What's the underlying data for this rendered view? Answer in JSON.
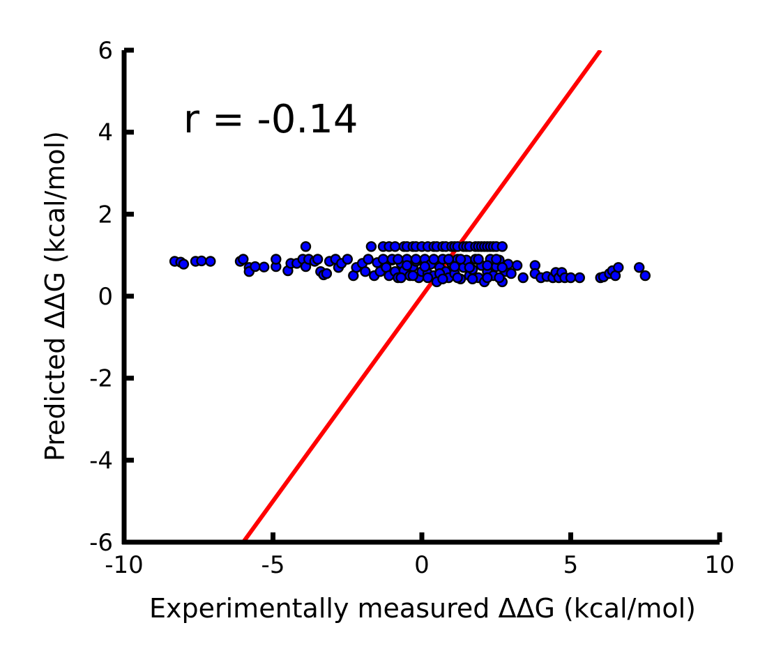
{
  "chart_data": {
    "type": "scatter",
    "title": "",
    "xlabel": "Experimentally measured ΔΔG (kcal/mol)",
    "ylabel": "Predicted ΔΔG (kcal/mol)",
    "xlim": [
      -10,
      10
    ],
    "ylim": [
      -6,
      6
    ],
    "x_ticks": [
      -10,
      -5,
      0,
      5,
      10
    ],
    "x_tick_labels": [
      "-10",
      "-5",
      "0",
      "5",
      "10"
    ],
    "y_ticks": [
      -6,
      -4,
      -2,
      0,
      2,
      4,
      6
    ],
    "y_tick_labels": [
      "-6",
      "-4",
      "-2",
      "0",
      "2",
      "4",
      "6"
    ],
    "grid": false,
    "annotation": "r = -0.14",
    "reference_line": {
      "color": "#ff0000",
      "x": [
        -6,
        6
      ],
      "y": [
        -6,
        6
      ]
    },
    "marker": {
      "fill": "#0000ff",
      "stroke": "#000000"
    },
    "points": [
      [
        -8.3,
        0.85
      ],
      [
        -8.1,
        0.83
      ],
      [
        -8.0,
        0.78
      ],
      [
        -7.6,
        0.85
      ],
      [
        -7.4,
        0.86
      ],
      [
        -7.1,
        0.85
      ],
      [
        -6.1,
        0.85
      ],
      [
        -6.0,
        0.9
      ],
      [
        -5.8,
        0.7
      ],
      [
        -5.8,
        0.6
      ],
      [
        -5.6,
        0.72
      ],
      [
        -5.3,
        0.71
      ],
      [
        -4.9,
        0.72
      ],
      [
        -4.9,
        0.9
      ],
      [
        -4.5,
        0.62
      ],
      [
        -4.4,
        0.8
      ],
      [
        -4.2,
        0.8
      ],
      [
        -4.0,
        0.9
      ],
      [
        -3.9,
        1.21
      ],
      [
        -3.9,
        0.72
      ],
      [
        -3.8,
        0.9
      ],
      [
        -3.6,
        0.85
      ],
      [
        -3.5,
        0.9
      ],
      [
        -3.4,
        0.6
      ],
      [
        -3.3,
        0.52
      ],
      [
        -3.2,
        0.55
      ],
      [
        -3.1,
        0.85
      ],
      [
        -2.9,
        0.9
      ],
      [
        -2.8,
        0.7
      ],
      [
        -2.7,
        0.8
      ],
      [
        -2.5,
        0.9
      ],
      [
        -2.3,
        0.5
      ],
      [
        -2.2,
        0.7
      ],
      [
        -2.0,
        0.8
      ],
      [
        -1.9,
        0.6
      ],
      [
        -1.8,
        0.9
      ],
      [
        -1.6,
        0.5
      ],
      [
        -1.5,
        0.82
      ],
      [
        -1.4,
        0.6
      ],
      [
        -1.3,
        0.9
      ],
      [
        -1.2,
        0.7
      ],
      [
        -1.1,
        0.5
      ],
      [
        -1.0,
        0.88
      ],
      [
        -0.9,
        0.6
      ],
      [
        -0.8,
        0.45
      ],
      [
        -0.7,
        0.8
      ],
      [
        -0.6,
        0.62
      ],
      [
        -0.5,
        0.9
      ],
      [
        -0.4,
        0.5
      ],
      [
        -0.3,
        0.72
      ],
      [
        -0.2,
        0.85
      ],
      [
        -0.1,
        0.45
      ],
      [
        0.0,
        0.6
      ],
      [
        0.1,
        0.9
      ],
      [
        0.2,
        0.55
      ],
      [
        0.3,
        0.78
      ],
      [
        0.4,
        0.5
      ],
      [
        0.5,
        0.35
      ],
      [
        0.6,
        0.7
      ],
      [
        0.7,
        0.9
      ],
      [
        0.8,
        0.6
      ],
      [
        0.9,
        0.45
      ],
      [
        1.0,
        0.8
      ],
      [
        1.1,
        0.55
      ],
      [
        1.2,
        0.9
      ],
      [
        1.3,
        0.42
      ],
      [
        1.4,
        0.7
      ],
      [
        1.5,
        0.88
      ],
      [
        1.6,
        0.5
      ],
      [
        1.7,
        0.65
      ],
      [
        1.8,
        0.9
      ],
      [
        1.9,
        0.45
      ],
      [
        2.0,
        0.75
      ],
      [
        2.1,
        0.35
      ],
      [
        2.2,
        0.6
      ],
      [
        2.3,
        0.9
      ],
      [
        2.4,
        0.5
      ],
      [
        2.5,
        0.72
      ],
      [
        2.6,
        0.88
      ],
      [
        2.7,
        0.35
      ],
      [
        2.8,
        0.6
      ],
      [
        2.9,
        0.78
      ],
      [
        3.0,
        0.55
      ],
      [
        3.2,
        0.75
      ],
      [
        3.4,
        0.45
      ],
      [
        3.8,
        0.75
      ],
      [
        3.8,
        0.55
      ],
      [
        4.0,
        0.45
      ],
      [
        4.2,
        0.48
      ],
      [
        4.4,
        0.45
      ],
      [
        4.5,
        0.58
      ],
      [
        4.6,
        0.45
      ],
      [
        4.7,
        0.58
      ],
      [
        4.8,
        0.45
      ],
      [
        5.0,
        0.45
      ],
      [
        5.3,
        0.45
      ],
      [
        6.0,
        0.45
      ],
      [
        6.1,
        0.47
      ],
      [
        6.3,
        0.55
      ],
      [
        6.4,
        0.62
      ],
      [
        6.5,
        0.5
      ],
      [
        6.6,
        0.7
      ],
      [
        7.3,
        0.7
      ],
      [
        7.5,
        0.5
      ],
      [
        -1.7,
        1.21
      ],
      [
        -1.3,
        1.21
      ],
      [
        -1.1,
        1.21
      ],
      [
        -0.9,
        1.21
      ],
      [
        -0.6,
        1.21
      ],
      [
        -0.5,
        1.21
      ],
      [
        -0.3,
        1.21
      ],
      [
        -0.2,
        1.21
      ],
      [
        0.0,
        1.21
      ],
      [
        0.2,
        1.21
      ],
      [
        0.4,
        1.21
      ],
      [
        0.5,
        1.21
      ],
      [
        0.7,
        1.21
      ],
      [
        0.8,
        1.21
      ],
      [
        1.0,
        1.21
      ],
      [
        1.1,
        1.21
      ],
      [
        1.2,
        1.21
      ],
      [
        1.4,
        1.21
      ],
      [
        1.5,
        1.21
      ],
      [
        1.6,
        1.21
      ],
      [
        1.8,
        1.21
      ],
      [
        1.9,
        1.21
      ],
      [
        2.0,
        1.21
      ],
      [
        2.1,
        1.21
      ],
      [
        2.2,
        1.21
      ],
      [
        2.3,
        1.21
      ],
      [
        2.4,
        1.21
      ],
      [
        2.5,
        1.21
      ],
      [
        2.7,
        1.21
      ],
      [
        -1.0,
        0.9
      ],
      [
        -0.8,
        0.9
      ],
      [
        -0.5,
        0.75
      ],
      [
        -0.2,
        0.9
      ],
      [
        0.1,
        0.72
      ],
      [
        0.4,
        0.9
      ],
      [
        0.6,
        0.55
      ],
      [
        0.9,
        0.9
      ],
      [
        1.1,
        0.72
      ],
      [
        1.3,
        0.9
      ],
      [
        1.6,
        0.7
      ],
      [
        1.9,
        0.9
      ],
      [
        2.2,
        0.75
      ],
      [
        2.5,
        0.9
      ],
      [
        2.7,
        0.7
      ],
      [
        -0.7,
        0.45
      ],
      [
        -0.3,
        0.5
      ],
      [
        0.2,
        0.45
      ],
      [
        0.7,
        0.42
      ],
      [
        1.2,
        0.45
      ],
      [
        1.7,
        0.42
      ],
      [
        2.2,
        0.45
      ],
      [
        2.6,
        0.45
      ]
    ]
  }
}
